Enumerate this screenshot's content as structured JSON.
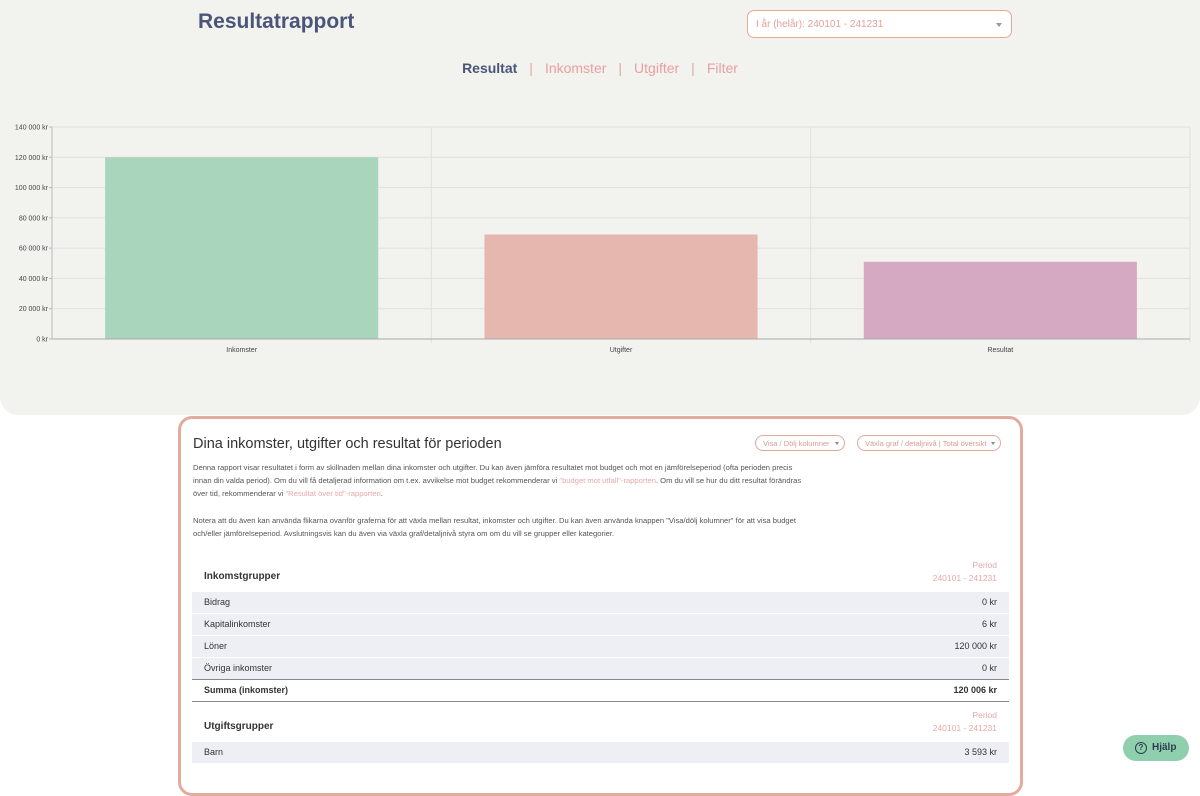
{
  "header": {
    "title": "Resultatrapport",
    "period_select": "I år (helår): 240101 - 241231"
  },
  "tabs": [
    "Resultat",
    "Inkomster",
    "Utgifter",
    "Filter"
  ],
  "chart_data": {
    "type": "bar",
    "categories": [
      "Inkomster",
      "Utgifter",
      "Resultat"
    ],
    "values": [
      120006,
      69000,
      51006
    ],
    "colors": [
      "#a8d5bc",
      "#e6b7af",
      "#d6a9c3"
    ],
    "ylim": [
      0,
      140000
    ],
    "yticks": [
      {
        "value": 0,
        "label": "0 kr"
      },
      {
        "value": 20000,
        "label": "20 000 kr"
      },
      {
        "value": 40000,
        "label": "40 000 kr"
      },
      {
        "value": 60000,
        "label": "60 000 kr"
      },
      {
        "value": 80000,
        "label": "80 000 kr"
      },
      {
        "value": 100000,
        "label": "100 000 kr"
      },
      {
        "value": 120000,
        "label": "120 000 kr"
      },
      {
        "value": 140000,
        "label": "140 000 kr"
      }
    ],
    "grid": true
  },
  "panel": {
    "title": "Dina inkomster, utgifter och resultat för perioden",
    "buttons": [
      "Visa / Dölj kolumner",
      "Växla graf / detaljnivå | Total översikt"
    ],
    "paragraph1": [
      "Denna rapport visar resultatet i form av skillnaden mellan dina inkomster och utgifter. Du kan även jämföra resultatet mot budget och mot en jämförelseperiod (ofta perioden precis innan din valda period). Om du vill få detaljerad information om t.ex. avvikelse mot budget rekommenderar vi ",
      "\"budget mot utfall\"-rapporten",
      ". Om du vill se hur du ditt resultat förändras över tid, rekommenderar vi ",
      "\"Resultat över tid\"-rapporten",
      "."
    ],
    "paragraph2": "Notera att du även kan använda flikarna ovanför graferna för att växla mellan resultat, inkomster och utgifter. Du kan även använda knappen \"Visa/dölj kolumner\" för att visa budget och/eller jämförelseperiod. Avslutningsvis kan du även via växla graf/detaljnivå styra om om du vill se grupper eller kategorier.",
    "groups": [
      {
        "title": "Inkomstgrupper",
        "period_label": "Period",
        "period": "240101 - 241231",
        "rows": [
          [
            "Bidrag",
            "0 kr"
          ],
          [
            "Kapitalinkomster",
            "6 kr"
          ],
          [
            "Löner",
            "120 000 kr"
          ],
          [
            "Övriga inkomster",
            "0 kr"
          ]
        ],
        "total": [
          "Summa (inkomster)",
          "120 006 kr"
        ]
      },
      {
        "title": "Utgiftsgrupper",
        "period_label": "Period",
        "period": "240101 - 241231",
        "rows": [
          [
            "Barn",
            "3 593 kr"
          ]
        ]
      }
    ]
  },
  "help_button": "Hjälp"
}
